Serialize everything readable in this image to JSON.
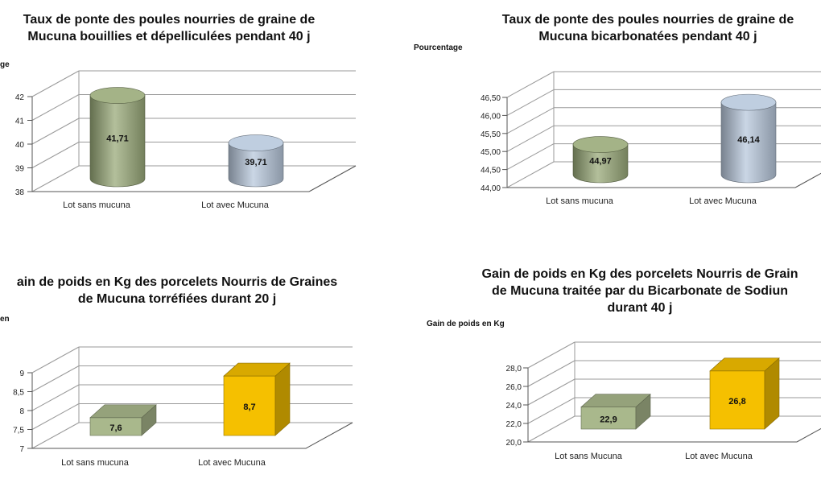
{
  "chart_data": [
    {
      "type": "bar",
      "shape": "cylinder",
      "title_line1": "Taux de ponte des poules nourries de graine de",
      "title_line2": "Mucuna  bouillies et dépelliculées pendant 40 j",
      "ylabel": "ge",
      "categories": [
        "Lot sans mucuna",
        "Lot avec Mucuna"
      ],
      "values": [
        41.71,
        39.71
      ],
      "value_labels": [
        "41,71",
        "39,71"
      ],
      "ticks": [
        "38",
        "39",
        "40",
        "41",
        "42"
      ],
      "ylim": [
        38,
        42
      ],
      "colors": [
        "#9aaa7a",
        "#b8c8dc"
      ]
    },
    {
      "type": "bar",
      "shape": "cylinder",
      "title_line1": "Taux de ponte des poules nourries de graine de",
      "title_line2": "Mucuna  bicarbonatées pendant 40 j",
      "ylabel": "Pourcentage",
      "categories": [
        "Lot sans mucuna",
        "Lot avec Mucuna"
      ],
      "values": [
        44.97,
        46.14
      ],
      "value_labels": [
        "44,97",
        "46,14"
      ],
      "ticks": [
        "44,00",
        "44,50",
        "45,00",
        "45,50",
        "46,00",
        "46,50"
      ],
      "ylim": [
        44,
        46.5
      ],
      "colors": [
        "#9aaa7a",
        "#b8c8dc"
      ]
    },
    {
      "type": "bar",
      "shape": "box",
      "title_line1": "ain de poids en Kg des porcelets Nourris de Graines",
      "title_line2": "de Mucuna torréfiées  durant 20 j",
      "ylabel": "en",
      "categories": [
        "Lot sans mucuna",
        "Lot avec Mucuna"
      ],
      "values": [
        7.6,
        8.7
      ],
      "value_labels": [
        "7,6",
        "8,7"
      ],
      "ticks": [
        "7",
        "7,5",
        "8",
        "8,5",
        "9"
      ],
      "ylim": [
        7,
        9
      ],
      "colors": [
        "#a9b88c",
        "#f5c000"
      ]
    },
    {
      "type": "bar",
      "shape": "box",
      "title_line1": "Gain de poids en Kg des porcelets Nourris de Grain",
      "title_line2": "de Mucuna traitée par du Bicarbonate de Sodiun",
      "title_line3": "durant 40 j",
      "ylabel": "Gain de poids en Kg",
      "categories": [
        "Lot sans Mucuna",
        "Lot avec Mucuna"
      ],
      "values": [
        22.9,
        26.8
      ],
      "value_labels": [
        "22,9",
        "26,8"
      ],
      "ticks": [
        "20,0",
        "22,0",
        "24,0",
        "26,0",
        "28,0"
      ],
      "ylim": [
        20,
        28
      ],
      "colors": [
        "#a9b88c",
        "#f5c000"
      ]
    }
  ]
}
